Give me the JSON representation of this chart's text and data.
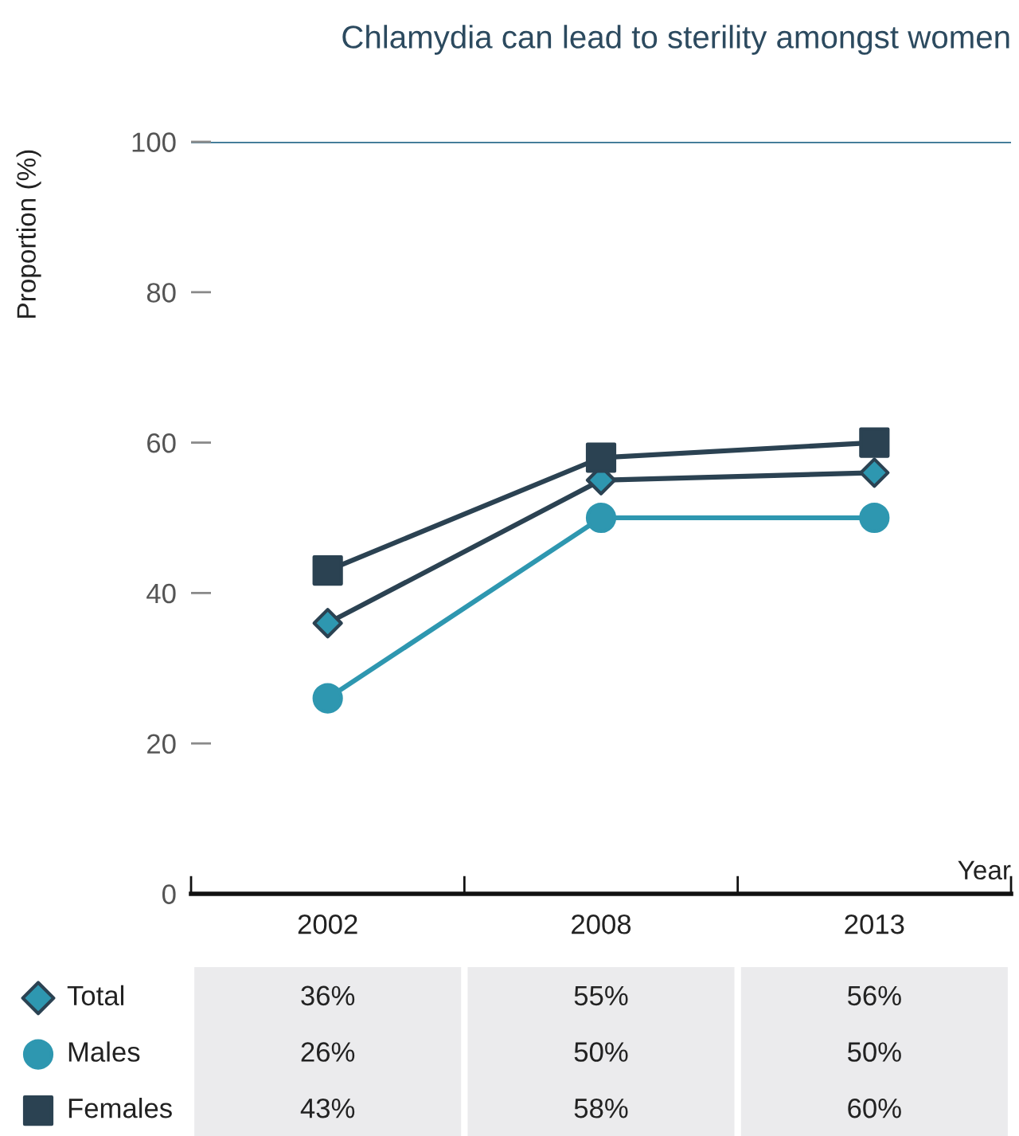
{
  "chart_data": {
    "type": "line",
    "title": "Chlamydia can lead to sterility amongst women",
    "xlabel": "Year",
    "ylabel": "Proportion (%)",
    "categories": [
      "2002",
      "2008",
      "2013"
    ],
    "series": [
      {
        "name": "Total",
        "color": "#2b4252",
        "colors": [
          "#2e97b0",
          "#2e97b0",
          "#2e97b0"
        ],
        "marker": "diamond",
        "values": [
          36,
          55,
          56
        ],
        "value_labels": [
          "36%",
          "55%",
          "56%"
        ]
      },
      {
        "name": "Males",
        "color": "#2e97b0",
        "marker": "circle",
        "values": [
          26,
          50,
          50
        ],
        "value_labels": [
          "26%",
          "50%",
          "50%"
        ]
      },
      {
        "name": "Females",
        "color": "#2b4252",
        "marker": "square",
        "values": [
          43,
          58,
          60
        ],
        "value_labels": [
          "43%",
          "58%",
          "60%"
        ]
      }
    ],
    "ylim": [
      0,
      100
    ],
    "yticks": [
      0,
      20,
      40,
      60,
      80,
      100
    ],
    "ref_lines": [
      {
        "axis": "y",
        "value": 100,
        "color": "#2f6e8e"
      }
    ],
    "legend": "bottom",
    "line_style": "solid",
    "grid": false
  }
}
